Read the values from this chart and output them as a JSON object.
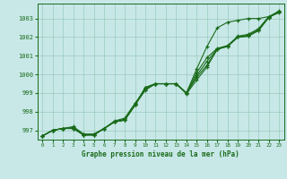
{
  "xlabel": "Graphe pression niveau de la mer (hPa)",
  "background_color": "#c8e8e8",
  "grid_color": "#99ccbb",
  "line_color": "#1a6b1a",
  "ylim": [
    996.5,
    1003.8
  ],
  "xlim": [
    -0.5,
    23.5
  ],
  "yticks": [
    997,
    998,
    999,
    1000,
    1001,
    1002,
    1003
  ],
  "xticks": [
    0,
    1,
    2,
    3,
    4,
    5,
    6,
    7,
    8,
    9,
    10,
    11,
    12,
    13,
    14,
    15,
    16,
    17,
    18,
    19,
    20,
    21,
    22,
    23
  ],
  "hours": [
    0,
    1,
    2,
    3,
    4,
    5,
    6,
    7,
    8,
    9,
    10,
    11,
    12,
    13,
    14,
    15,
    16,
    17,
    18,
    19,
    20,
    21,
    22,
    23
  ],
  "line1": [
    996.7,
    997.0,
    997.1,
    997.1,
    996.75,
    996.75,
    997.1,
    997.45,
    997.55,
    998.35,
    999.3,
    999.5,
    999.5,
    999.5,
    999.0,
    999.85,
    1000.5,
    1001.35,
    1001.5,
    1002.0,
    1002.05,
    1002.35,
    1003.05,
    1003.35
  ],
  "line2": [
    996.7,
    997.0,
    997.1,
    997.2,
    996.8,
    996.8,
    997.1,
    997.5,
    997.65,
    998.45,
    999.2,
    999.5,
    999.5,
    999.5,
    999.0,
    1000.1,
    1000.9,
    1001.4,
    1001.55,
    1002.05,
    1002.15,
    1002.45,
    1003.1,
    1003.4
  ],
  "line3": [
    996.7,
    997.0,
    997.1,
    997.15,
    996.78,
    996.78,
    997.1,
    997.47,
    997.6,
    998.4,
    999.25,
    999.5,
    999.5,
    999.5,
    999.0,
    999.95,
    1000.7,
    1001.37,
    1001.52,
    1002.02,
    1002.1,
    1002.4,
    1003.07,
    1003.37
  ],
  "line4": [
    996.7,
    997.0,
    997.1,
    997.1,
    996.75,
    996.75,
    997.1,
    997.45,
    997.55,
    998.35,
    999.15,
    999.5,
    999.5,
    999.5,
    998.95,
    999.7,
    1000.4,
    1001.35,
    1001.5,
    1002.0,
    1002.05,
    1002.35,
    1003.05,
    1003.35
  ],
  "line_diverge": [
    996.7,
    997.0,
    997.1,
    997.1,
    996.75,
    996.75,
    997.1,
    997.45,
    997.55,
    998.35,
    999.3,
    999.5,
    999.5,
    999.5,
    999.0,
    1000.3,
    1001.5,
    1002.5,
    1002.8,
    1002.9,
    1003.0,
    1003.0,
    1003.1,
    1003.3
  ]
}
